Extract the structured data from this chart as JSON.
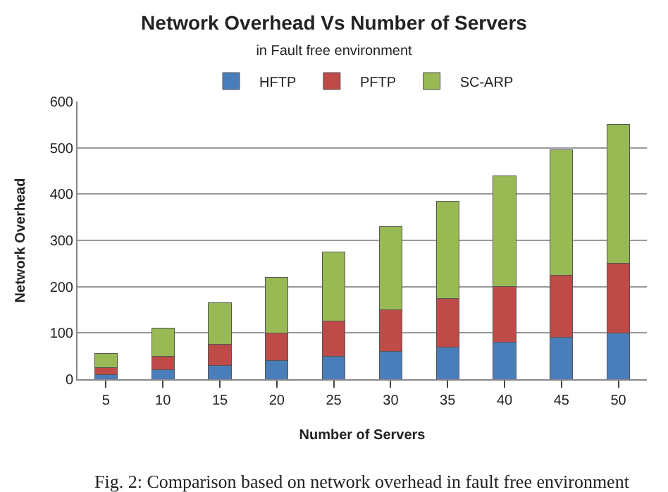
{
  "chart_data": {
    "type": "bar",
    "title": "Network Overhead Vs Number of Servers",
    "subtitle": "in Fault free environment",
    "xlabel": "Number of Servers",
    "ylabel": "Network Overhead",
    "categories": [
      "5",
      "10",
      "15",
      "20",
      "25",
      "30",
      "35",
      "40",
      "45",
      "50"
    ],
    "stacked": true,
    "series": [
      {
        "name": "HFTP",
        "color": "#4a7ebb",
        "values": [
          10,
          20,
          30,
          40,
          50,
          60,
          70,
          80,
          90,
          100
        ]
      },
      {
        "name": "PFTP",
        "color": "#be4b48",
        "values": [
          15,
          30,
          45,
          60,
          75,
          90,
          105,
          120,
          135,
          150
        ]
      },
      {
        "name": "SC-ARP",
        "color": "#98b954",
        "values": [
          30,
          60,
          90,
          120,
          150,
          180,
          210,
          240,
          270,
          300
        ]
      }
    ],
    "ylim": [
      0,
      600
    ],
    "yticks": [
      0,
      100,
      200,
      300,
      400,
      500,
      600
    ],
    "grid": "y",
    "legend": "top",
    "annotations": [
      "Fig. 2: Comparison based on network overhead in fault free environment"
    ]
  }
}
